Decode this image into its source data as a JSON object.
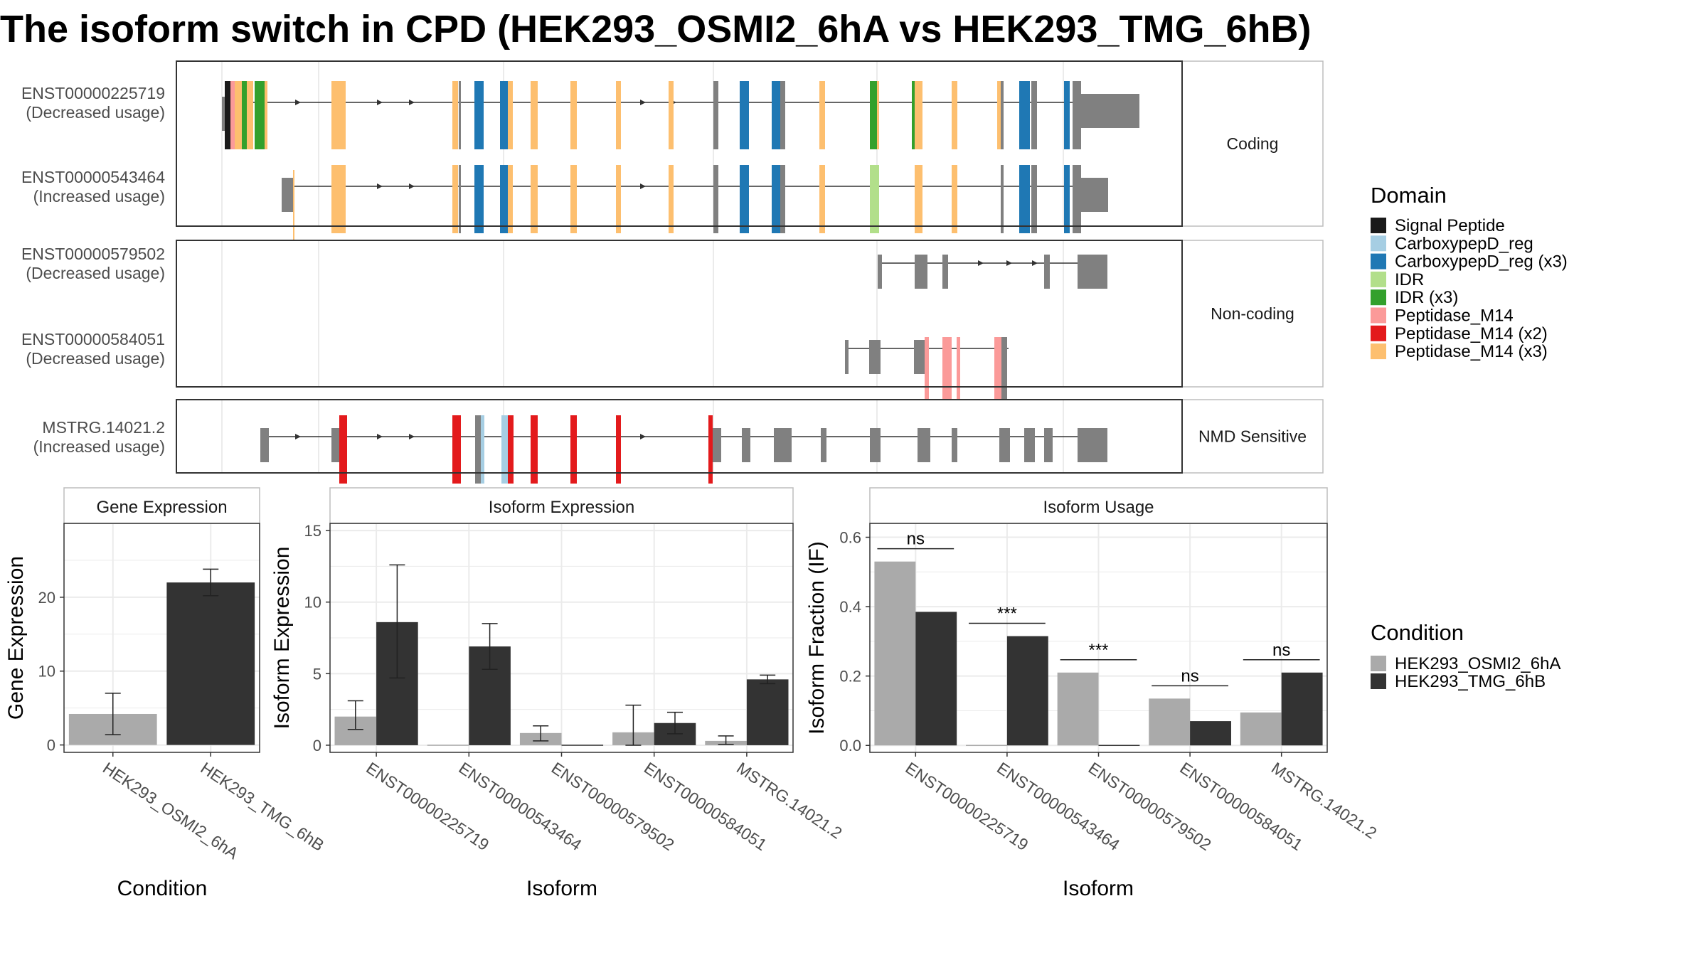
{
  "title": "The isoform switch in CPD (HEK293_OSMI2_6hA vs HEK293_TMG_6hB)",
  "domain_legend": {
    "title": "Domain",
    "items": [
      {
        "label": "Signal Peptide",
        "color": "#1a1a1a"
      },
      {
        "label": "CarboxypepD_reg",
        "color": "#a6cee3"
      },
      {
        "label": "CarboxypepD_reg (x3)",
        "color": "#1f78b4"
      },
      {
        "label": "IDR",
        "color": "#b2df8a"
      },
      {
        "label": "IDR (x3)",
        "color": "#33a02c"
      },
      {
        "label": "Peptidase_M14",
        "color": "#fb9a99"
      },
      {
        "label": "Peptidase_M14 (x2)",
        "color": "#e31a1c"
      },
      {
        "label": "Peptidase_M14 (x3)",
        "color": "#fdbf6f"
      }
    ]
  },
  "condition_legend": {
    "title": "Condition",
    "items": [
      {
        "label": "HEK293_OSMI2_6hA",
        "color": "#aaaaaa"
      },
      {
        "label": "HEK293_TMG_6hB",
        "color": "#333333"
      }
    ]
  },
  "transcript_panels": [
    {
      "label": "Coding",
      "transcripts": [
        {
          "id": "ENST00000225719",
          "usage": "(Decreased usage)"
        },
        {
          "id": "ENST00000543464",
          "usage": "(Increased usage)"
        }
      ]
    },
    {
      "label": "Non-coding",
      "transcripts": [
        {
          "id": "ENST00000579502",
          "usage": "(Decreased usage)"
        },
        {
          "id": "ENST00000584051",
          "usage": "(Decreased usage)"
        }
      ]
    },
    {
      "label": "NMD Sensitive",
      "transcripts": [
        {
          "id": "MSTRG.14021.2",
          "usage": "(Increased usage)"
        }
      ]
    }
  ],
  "chart_data": [
    {
      "type": "bar",
      "title": "Gene Expression",
      "xlabel": "Condition",
      "ylabel": "Gene Expression",
      "categories": [
        "HEK293_OSMI2_6hA",
        "HEK293_TMG_6hB"
      ],
      "values": [
        4.2,
        22.0
      ],
      "errors": [
        [
          1.4,
          7.0
        ],
        [
          20.2,
          23.8
        ]
      ],
      "ylim": [
        -1,
        30
      ],
      "yticks": [
        0,
        10,
        20
      ]
    },
    {
      "type": "bar",
      "title": "Isoform Expression",
      "xlabel": "Isoform",
      "ylabel": "Isoform Expression",
      "categories": [
        "ENST00000225719",
        "ENST00000543464",
        "ENST00000579502",
        "ENST00000584051",
        "MSTRG.14021.2"
      ],
      "series": [
        {
          "name": "HEK293_OSMI2_6hA",
          "values": [
            2.0,
            0.0,
            0.85,
            0.9,
            0.3
          ],
          "errors": [
            [
              1.1,
              3.1
            ],
            [
              0.0,
              0.0
            ],
            [
              0.3,
              1.35
            ],
            [
              0.0,
              2.8
            ],
            [
              0.05,
              0.65
            ]
          ]
        },
        {
          "name": "HEK293_TMG_6hB",
          "values": [
            8.6,
            6.9,
            0.0,
            1.55,
            4.6
          ],
          "errors": [
            [
              4.7,
              12.6
            ],
            [
              5.3,
              8.5
            ],
            [
              0.0,
              0.0
            ],
            [
              0.8,
              2.3
            ],
            [
              4.3,
              4.9
            ]
          ]
        }
      ],
      "ylim": [
        -0.5,
        15.5
      ],
      "yticks": [
        0,
        5,
        10,
        15
      ]
    },
    {
      "type": "bar",
      "title": "Isoform Usage",
      "xlabel": "Isoform",
      "ylabel": "Isoform Fraction (IF)",
      "categories": [
        "ENST00000225719",
        "ENST00000543464",
        "ENST00000579502",
        "ENST00000584051",
        "MSTRG.14021.2"
      ],
      "series": [
        {
          "name": "HEK293_OSMI2_6hA",
          "values": [
            0.53,
            0.0,
            0.21,
            0.135,
            0.095
          ]
        },
        {
          "name": "HEK293_TMG_6hB",
          "values": [
            0.385,
            0.315,
            0.0,
            0.07,
            0.21
          ]
        }
      ],
      "significance": [
        "ns",
        "***",
        "***",
        "ns",
        "ns"
      ],
      "ylim": [
        -0.02,
        0.64
      ],
      "yticks": [
        0.0,
        0.2,
        0.4,
        0.6
      ],
      "ytick_labels": [
        "0.0",
        "0.2",
        "0.4",
        "0.6"
      ]
    }
  ]
}
